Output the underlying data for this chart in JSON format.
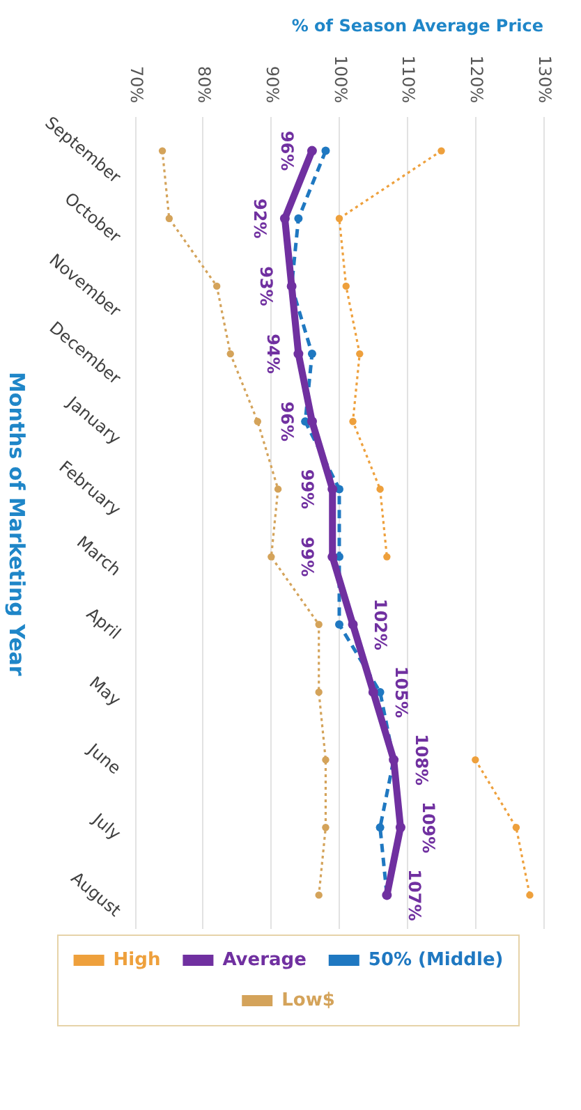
{
  "chart_data": {
    "type": "line",
    "orientation": "horizontal",
    "xlabel": "% of Season Average Price",
    "ylabel": "Months of Marketing Year",
    "categories": [
      "September",
      "October",
      "November",
      "December",
      "January",
      "February",
      "March",
      "April",
      "May",
      "June",
      "July",
      "August"
    ],
    "xlim": [
      70,
      130
    ],
    "xticks": [
      {
        "value": 70,
        "label": "70%"
      },
      {
        "value": 80,
        "label": "80%"
      },
      {
        "value": 90,
        "label": "90%"
      },
      {
        "value": 100,
        "label": "100%"
      },
      {
        "value": 110,
        "label": "110%"
      },
      {
        "value": 120,
        "label": "120%"
      },
      {
        "value": 130,
        "label": "130%"
      }
    ],
    "grid": "x",
    "legend": "bottom",
    "marker": "circle",
    "series": [
      {
        "name": "High",
        "color": "#eea03c",
        "line_style": "dotted",
        "values": [
          115,
          100,
          101,
          103,
          102,
          106,
          107,
          null,
          null,
          120,
          126,
          128
        ]
      },
      {
        "name": "Average",
        "color": "#7030a0",
        "line_style": "solid",
        "values": [
          96,
          92,
          93,
          94,
          96,
          99,
          99,
          102,
          105,
          108,
          109,
          107
        ],
        "value_labels": [
          "96%",
          "92%",
          "93%",
          "94%",
          "96%",
          "99%",
          "99%",
          "102%",
          "105%",
          "108%",
          "109%",
          "107%"
        ]
      },
      {
        "name": "50% (Middle)",
        "color": "#1f78c1",
        "line_style": "dashed",
        "values": [
          98,
          94,
          93,
          96,
          95,
          100,
          100,
          100,
          106,
          108,
          106,
          107
        ]
      },
      {
        "name": "Low$",
        "color": "#d4a35a",
        "line_style": "dotted",
        "values": [
          74,
          75,
          82,
          84,
          88,
          91,
          90,
          97,
          97,
          98,
          98,
          97
        ]
      }
    ]
  }
}
